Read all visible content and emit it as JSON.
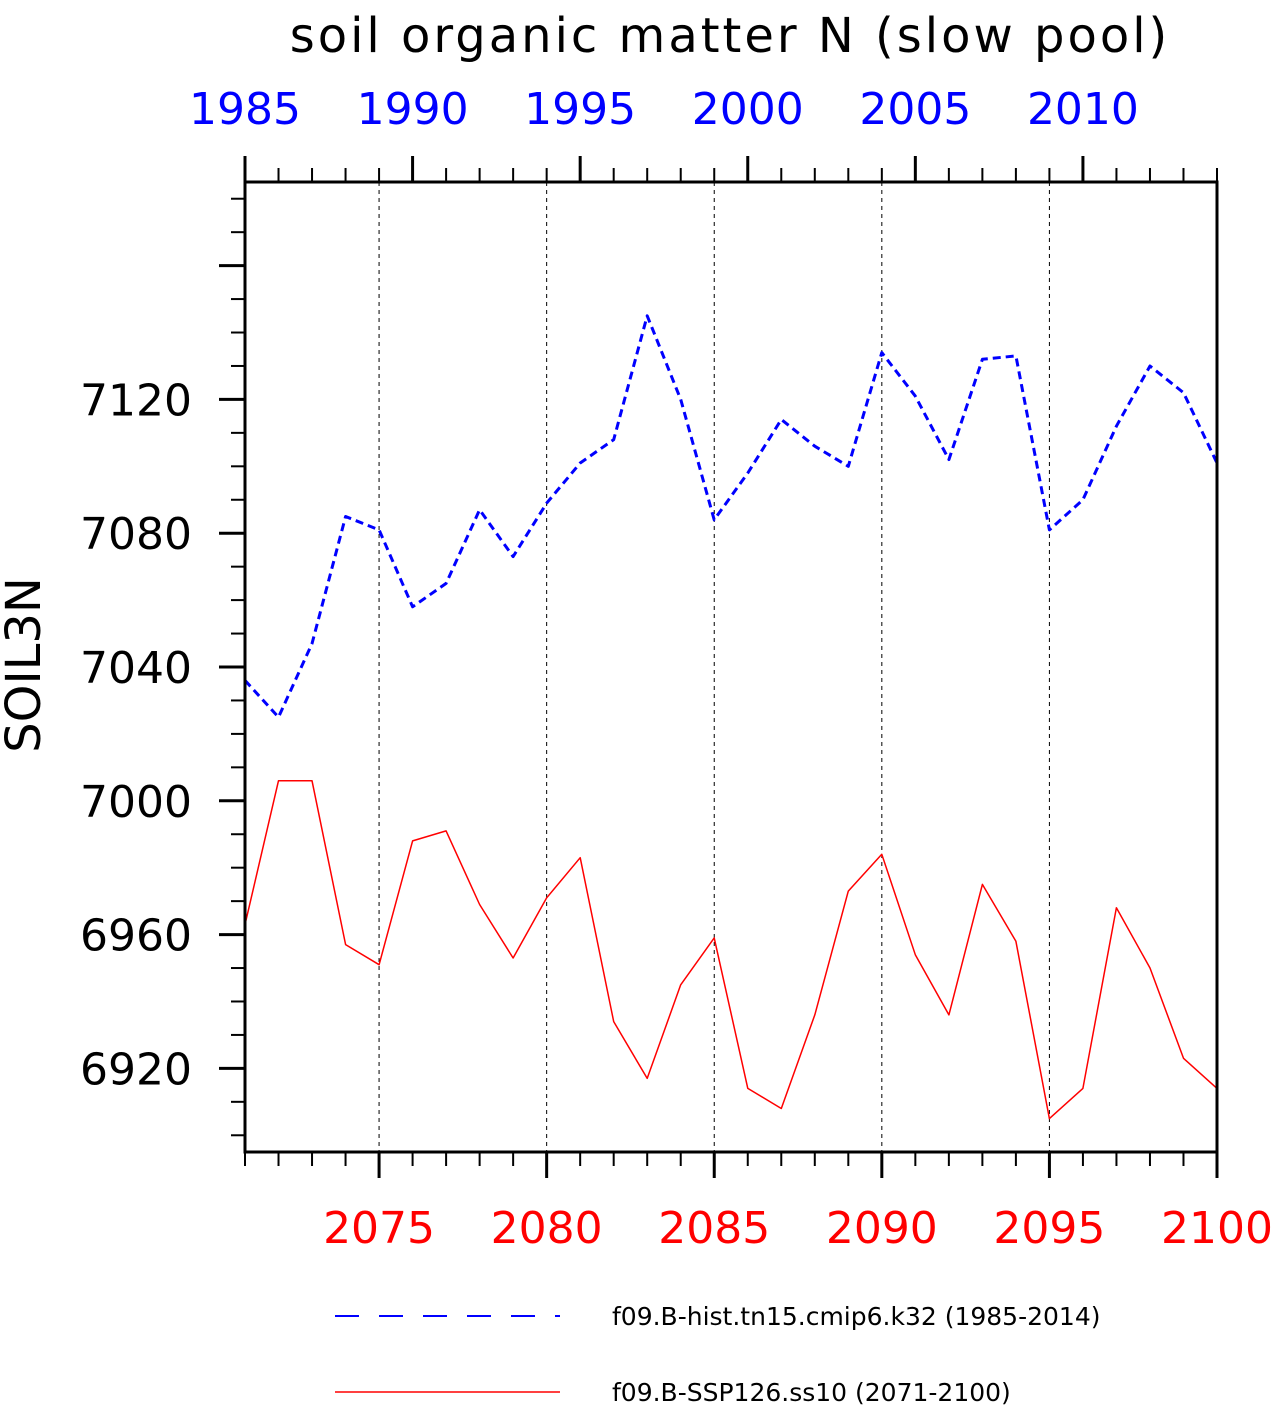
{
  "chart_data": {
    "type": "line",
    "title": "soil organic matter N (slow pool)",
    "ylabel": "SOIL3N",
    "ylim": [
      6895,
      7185
    ],
    "y_ticks": [
      "6920",
      "6960",
      "7000",
      "7040",
      "7080",
      "7120"
    ],
    "top_axis": {
      "color": "#0000ff",
      "range": [
        1985,
        2014
      ],
      "ticks": [
        "1985",
        "1990",
        "1995",
        "2000",
        "2005",
        "2010"
      ]
    },
    "bottom_axis": {
      "color": "#ff0000",
      "range": [
        2071,
        2100
      ],
      "ticks": [
        "2075",
        "2080",
        "2085",
        "2090",
        "2095",
        "2100"
      ]
    },
    "grid": "dashed vertical at major ticks",
    "series": [
      {
        "name": "f09.B-hist.tn15.cmip6.k32 (1985-2014)",
        "color": "#0000ff",
        "dash": "dashed",
        "axis": "top",
        "x": [
          1985,
          1986,
          1987,
          1988,
          1989,
          1990,
          1991,
          1992,
          1993,
          1994,
          1995,
          1996,
          1997,
          1998,
          1999,
          2000,
          2001,
          2002,
          2003,
          2004,
          2005,
          2006,
          2007,
          2008,
          2009,
          2010,
          2011,
          2012,
          2013,
          2014
        ],
        "values": [
          7036,
          7025,
          7047,
          7085,
          7081,
          7058,
          7065,
          7087,
          7073,
          7089,
          7101,
          7108,
          7145,
          7120,
          7084,
          7098,
          7114,
          7106,
          7100,
          7134,
          7121,
          7102,
          7132,
          7133,
          7081,
          7090,
          7112,
          7130,
          7122,
          7101
        ]
      },
      {
        "name": "f09.B-SSP126.ss10 (2071-2100)",
        "color": "#ff0000",
        "dash": "solid",
        "axis": "bottom",
        "x": [
          2071,
          2072,
          2073,
          2074,
          2075,
          2076,
          2077,
          2078,
          2079,
          2080,
          2081,
          2082,
          2083,
          2084,
          2085,
          2086,
          2087,
          2088,
          2089,
          2090,
          2091,
          2092,
          2093,
          2094,
          2095,
          2096,
          2097,
          2098,
          2099,
          2100
        ],
        "values": [
          6963,
          7006,
          7006,
          6957,
          6951,
          6988,
          6991,
          6969,
          6953,
          6971,
          6983,
          6934,
          6917,
          6945,
          6959,
          6914,
          6908,
          6936,
          6973,
          6984,
          6954,
          6936,
          6975,
          6958,
          6905,
          6914,
          6968,
          6950,
          6923,
          6914
        ]
      }
    ],
    "legend": "bottom"
  }
}
